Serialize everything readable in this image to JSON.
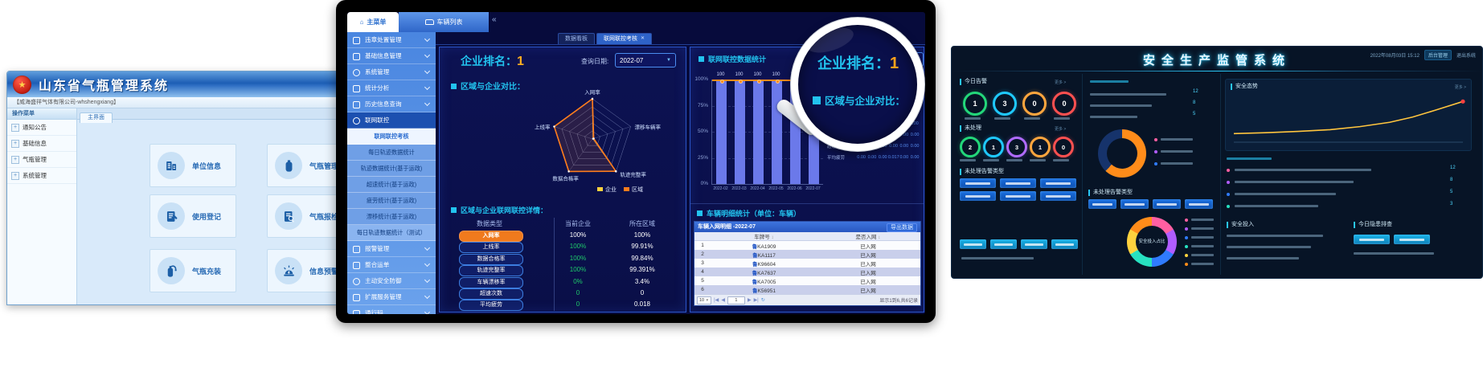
{
  "left_app": {
    "window_title": "山东省气瓶管理系统",
    "company": "【威海盛祥气体有限公司-whshengxiang】",
    "menu_header": "操作菜单",
    "menu_items": [
      "通知公告",
      "基础信息",
      "气瓶管理",
      "系统管理"
    ],
    "main_tab": "主界面",
    "tiles": [
      {
        "label": "单位信息",
        "icon": "building-icon"
      },
      {
        "label": "气瓶管理",
        "icon": "cylinder-icon"
      },
      {
        "label": "使用登记",
        "icon": "register-icon"
      },
      {
        "label": "气瓶报检",
        "icon": "inspect-icon"
      },
      {
        "label": "气瓶充装",
        "icon": "filling-icon"
      },
      {
        "label": "信息预警",
        "icon": "alert-icon"
      }
    ]
  },
  "center_app": {
    "home_tab": "主菜单",
    "vehicle_tab": "车辆列表",
    "collapse_glyph": "«",
    "sidebar_items": [
      {
        "label": "违章处置管理",
        "type": "top",
        "chevron": true,
        "icon": "violation-icon"
      },
      {
        "label": "基础信息管理",
        "type": "top",
        "chevron": true,
        "icon": "info-icon"
      },
      {
        "label": "系统管理",
        "type": "top",
        "chevron": true,
        "icon": "gear-icon",
        "round": true
      },
      {
        "label": "统计分析",
        "type": "top",
        "chevron": true,
        "icon": "chart-icon"
      },
      {
        "label": "历史信息查询",
        "type": "top",
        "chevron": true,
        "icon": "history-icon"
      },
      {
        "label": "联网联控",
        "type": "top-open",
        "icon": "globe-icon",
        "round": true
      },
      {
        "label": "联网联控考核",
        "type": "sub",
        "selected": true
      },
      {
        "label": "每日轨迹数据统计",
        "type": "sub"
      },
      {
        "label": "轨迹数据统计(基于运政)",
        "type": "sub"
      },
      {
        "label": "超速统计(基于运政)",
        "type": "sub"
      },
      {
        "label": "疲劳统计(基于运政)",
        "type": "sub"
      },
      {
        "label": "漂移统计(基于运政)",
        "type": "sub"
      },
      {
        "label": "每日轨迹数据统计（测试）",
        "type": "sub-alt"
      },
      {
        "label": "报警管理",
        "type": "top",
        "chevron": true,
        "icon": "alarm-icon"
      },
      {
        "label": "整合运单",
        "type": "top",
        "chevron": true,
        "icon": "waybill-icon"
      },
      {
        "label": "主动安全防御",
        "type": "top",
        "chevron": true,
        "icon": "shield-icon",
        "round": true
      },
      {
        "label": "扩展服务管理",
        "type": "top",
        "chevron": true,
        "icon": "expand-icon"
      },
      {
        "label": "通行码",
        "type": "top",
        "chevron": true,
        "icon": "passcode-icon"
      },
      {
        "label": "资料库",
        "type": "top",
        "chevron": true,
        "icon": "library-icon"
      }
    ],
    "content_tabs": [
      {
        "label": "数据看板",
        "active": false
      },
      {
        "label": "联网联控考核",
        "active": true,
        "closable": true
      }
    ],
    "rank_label": "企业排名：",
    "rank_value": "1",
    "date_label": "查询日期:",
    "date_value": "2022-07",
    "compare_title": "区域与企业对比：",
    "radar": {
      "axes": [
        "入网率",
        "漂移车辆率",
        "轨迹完整率",
        "数据合格率",
        "上线率"
      ],
      "series": [
        {
          "name": "企业",
          "color": "#ffd23e",
          "values": [
            100,
            0,
            100,
            100,
            100
          ]
        },
        {
          "name": "区域",
          "color": "#ff7d1d",
          "values": [
            100,
            3.4,
            99.391,
            99.84,
            99.91
          ]
        }
      ]
    },
    "detail_title": "区域与企业联网联控详情：",
    "detail_table": {
      "headers": [
        "数据类型",
        "当前企业",
        "所在区域"
      ],
      "rows": [
        {
          "label": "入网率",
          "company": "100%",
          "region": "100%",
          "active": true
        },
        {
          "label": "上线率",
          "company": "100%",
          "region": "99.91%"
        },
        {
          "label": "数据合格率",
          "company": "100%",
          "region": "99.84%"
        },
        {
          "label": "轨迹完整率",
          "company": "100%",
          "region": "99.391%"
        },
        {
          "label": "车辆漂移率",
          "company": "0%",
          "region": "3.4%"
        },
        {
          "label": "超速次数",
          "company": "0",
          "region": "0"
        },
        {
          "label": "平均疲劳",
          "company": "0",
          "region": "0.018"
        }
      ]
    },
    "stats_panel": {
      "title": "联网联控数据统计",
      "metric_select": "入网率",
      "chart_data": {
        "type": "bar",
        "categories": [
          "2022-02",
          "2022-03",
          "2022-04",
          "2022-05",
          "2022-06",
          "2022-07"
        ],
        "values": [
          100,
          100,
          100,
          100,
          100,
          100
        ],
        "bar_labels": [
          "100",
          "100",
          "100",
          "100",
          "100",
          "100"
        ],
        "y_ticks": [
          "100%",
          "75%",
          "50%",
          "25%",
          "0%"
        ],
        "bar_color": "#6b79ea",
        "line_color": "#ff8c1a",
        "ylim": [
          0,
          100
        ]
      },
      "month_table": {
        "headers": [
          "数据类型",
          "7月",
          "6月",
          "5月",
          "4月",
          "3月",
          "2月"
        ],
        "rows": [
          {
            "label": "入网率",
            "values": [
              "100",
              "100",
              "100",
              "100",
              "100",
              "100"
            ]
          },
          {
            "label": "上线率",
            "values": [
              "100",
              "100",
              "100",
              "100",
              "100",
              "100"
            ]
          },
          {
            "label": "数据合格率",
            "values": [
              "100",
              "100",
              "100",
              "100",
              "100",
              "100"
            ]
          },
          {
            "label": "轨迹完整率",
            "values": [
              "100",
              "100",
              "99.73",
              "98.95",
              "99.93",
              "100"
            ]
          },
          {
            "label": "车辆漂移率",
            "values": [
              "0.00",
              "0.00",
              "0.00",
              "0.00",
              "0.00",
              "0.00"
            ]
          },
          {
            "label": "超速次数",
            "values": [
              "0.00",
              "0.00",
              "0.00",
              "0.00",
              "0.00",
              "0.00"
            ]
          },
          {
            "label": "平均疲劳",
            "values": [
              "0.00",
              "0.00",
              "0.00",
              "0.017",
              "0.00",
              "0.00"
            ]
          }
        ]
      }
    },
    "vehicle_panel": {
      "title": "车辆明细统计（单位：车辆）",
      "bar_title": "车辆入网明细 -2022-07",
      "export_label": "导出数据",
      "col_plate": "车牌号",
      "col_status": "是否入网",
      "rows": [
        {
          "no": "1",
          "plate": "鲁KA1909",
          "status": "已入网"
        },
        {
          "no": "2",
          "plate": "鲁KA1117",
          "status": "已入网"
        },
        {
          "no": "3",
          "plate": "鲁K96604",
          "status": "已入网"
        },
        {
          "no": "4",
          "plate": "鲁KA7637",
          "status": "已入网"
        },
        {
          "no": "5",
          "plate": "鲁KA7005",
          "status": "已入网"
        },
        {
          "no": "6",
          "plate": "鲁K56951",
          "status": "已入网"
        }
      ],
      "page_size": "10",
      "page_value": "1",
      "summary": "显示1到6,共6记录"
    }
  },
  "right_app": {
    "title": "安全生产监管系统",
    "datetime": "2022年08月03日 15:12",
    "menu_admin": "后台管理",
    "menu_logout": "退出系统",
    "more_label": "更多 >",
    "sections": {
      "today_title": "今日告警",
      "today_rings": [
        {
          "value": "1",
          "color": "#23d77a"
        },
        {
          "value": "3",
          "color": "#1fc9ff"
        },
        {
          "value": "0",
          "color": "#ffa63e"
        },
        {
          "value": "0",
          "color": "#ff5050"
        }
      ],
      "unhandled_title": "未处理",
      "unhandled_rings": [
        {
          "value": "2",
          "color": "#23d77a"
        },
        {
          "value": "1",
          "color": "#1fc9ff"
        },
        {
          "value": "3",
          "color": "#b06bff"
        },
        {
          "value": "1",
          "color": "#ffa63e"
        },
        {
          "value": "0",
          "color": "#ff5050"
        }
      ],
      "types_title": "未处理告警类型",
      "type_chip_count": 6,
      "bottom_chip_count": 4,
      "mid_chip_count": 4,
      "check_chip_count": 2,
      "donut": {
        "segments": [
          {
            "color": "#ff8c1a",
            "pct": 62
          },
          {
            "color": "#16336b",
            "pct": 38
          }
        ]
      },
      "trend_title": "安全态势",
      "trend_points": [
        [
          0,
          82
        ],
        [
          14,
          80
        ],
        [
          28,
          77
        ],
        [
          42,
          73
        ],
        [
          55,
          66
        ],
        [
          68,
          56
        ],
        [
          78,
          44
        ],
        [
          88,
          28
        ],
        [
          100,
          8
        ]
      ],
      "trend_color": "#ffc53e",
      "invest_title": "安全投入",
      "invest_donut_label": "安全投入占比",
      "invest_colors": [
        "#ff5fa2",
        "#b05cff",
        "#2f7bff",
        "#27e1c1",
        "#ffd23e",
        "#ff8c1a"
      ],
      "check_title": "今日隐患排查",
      "list_values": [
        "12",
        "8",
        "5",
        "3"
      ]
    }
  }
}
